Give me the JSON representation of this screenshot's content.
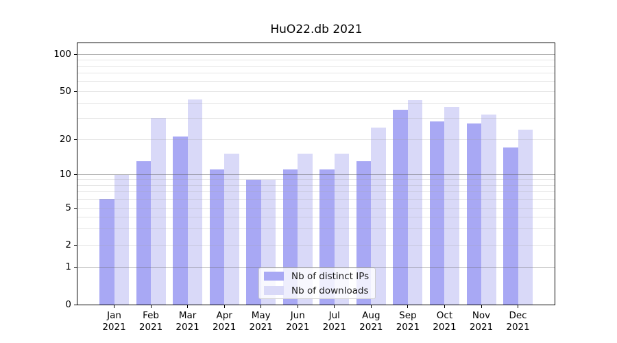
{
  "figure": {
    "title": "HuO22.db 2021"
  },
  "legend": {
    "items": [
      {
        "label": "Nb of distinct IPs",
        "color": "#a8a8f4"
      },
      {
        "label": "Nb of downloads",
        "color": "#d9d9f8"
      }
    ]
  },
  "chart_data": {
    "type": "bar",
    "title": "HuO22.db 2021",
    "categories": [
      "Jan 2021",
      "Feb 2021",
      "Mar 2021",
      "Apr 2021",
      "May 2021",
      "Jun 2021",
      "Jul 2021",
      "Aug 2021",
      "Sep 2021",
      "Oct 2021",
      "Nov 2021",
      "Dec 2021"
    ],
    "series": [
      {
        "name": "Nb of distinct IPs",
        "color": "#a8a8f4",
        "values": [
          6,
          13,
          21,
          11,
          9,
          11,
          11,
          13,
          35,
          28,
          27,
          17
        ]
      },
      {
        "name": "Nb of downloads",
        "color": "#d9d9f8",
        "values": [
          10,
          30,
          43,
          15,
          9,
          15,
          15,
          25,
          42,
          37,
          32,
          24
        ]
      }
    ],
    "xlabel": "",
    "ylabel": "",
    "yscale": "symlog",
    "ytick_labels": [
      "0",
      "1",
      "2",
      "5",
      "10",
      "20",
      "50",
      "100"
    ],
    "ylim": [
      0,
      120
    ],
    "grid": "on",
    "legend_position": "lower center"
  }
}
